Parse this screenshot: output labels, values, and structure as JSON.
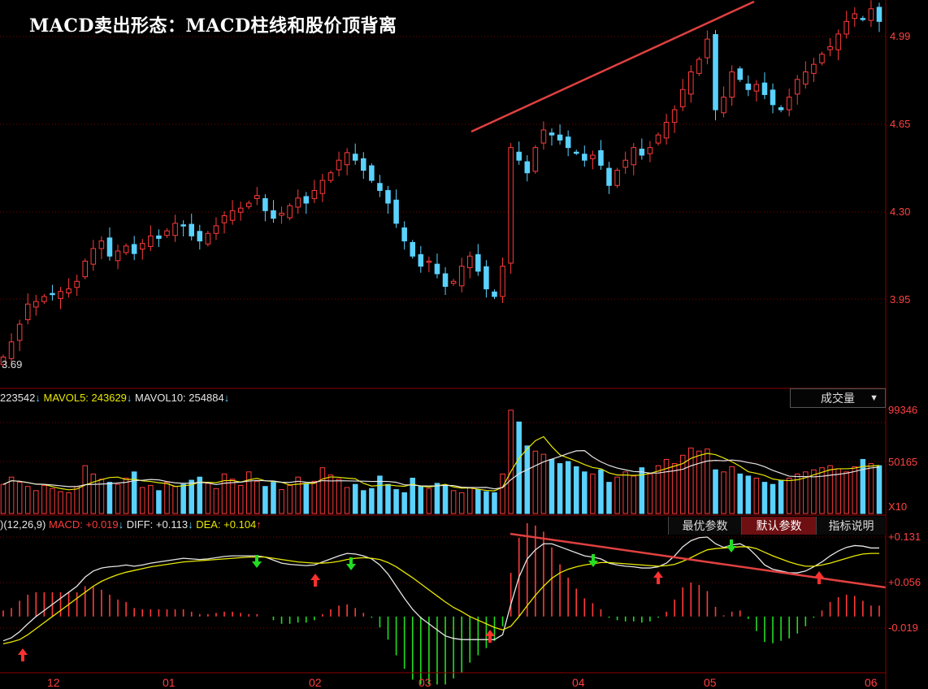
{
  "title": "MACD卖出形态：MACD柱线和股价顶背离",
  "price_labels": [
    "4.99",
    "4.65",
    "4.30",
    "3.95"
  ],
  "first_price": "3.69",
  "volume_panel": {
    "legend": {
      "vol": "223542",
      "mavol5_label": "MAVOL5:",
      "mavol5": "243629",
      "mavol10_label": "MAVOL10:",
      "mavol10": "254884"
    },
    "button": "成交量",
    "axis": [
      "99346",
      "50165",
      "X10"
    ]
  },
  "macd_panel": {
    "legend": {
      "params": ")(12,26,9)",
      "macd_label": "MACD:",
      "macd": "+0.019",
      "diff_label": "DIFF:",
      "diff": "+0.113",
      "dea_label": "DEA:",
      "dea": "+0.104"
    },
    "buttons": [
      "最优参数",
      "默认参数",
      "指标说明"
    ],
    "axis": [
      "+0.131",
      "+0.056",
      "-0.019"
    ]
  },
  "x_labels": [
    "12",
    "01",
    "02",
    "03",
    "04",
    "05",
    "06"
  ],
  "colors": {
    "up": "#ff3b3b",
    "down": "#5ad2ff",
    "grid": "#7a0000",
    "trend": "#e04040",
    "ma_white": "#e6e6e6",
    "ma_yellow": "#e8e800",
    "buy": "#ff3030",
    "sell": "#22dd22"
  },
  "chart_data": {
    "type": "candlestick",
    "price_ylim": [
      3.62,
      5.1
    ],
    "close": [
      3.72,
      3.78,
      3.85,
      3.93,
      3.94,
      3.96,
      3.97,
      3.98,
      3.99,
      4.02,
      4.1,
      4.15,
      4.18,
      4.12,
      4.14,
      4.16,
      4.13,
      4.17,
      4.2,
      4.19,
      4.22,
      4.25,
      4.24,
      4.2,
      4.18,
      4.21,
      4.24,
      4.28,
      4.3,
      4.31,
      4.33,
      4.36,
      4.3,
      4.27,
      4.29,
      4.32,
      4.35,
      4.33,
      4.38,
      4.42,
      4.45,
      4.5,
      4.53,
      4.5,
      4.46,
      4.42,
      4.38,
      4.33,
      4.25,
      4.18,
      4.12,
      4.08,
      4.1,
      4.05,
      4.0,
      4.02,
      4.08,
      4.12,
      4.06,
      3.99,
      3.96,
      4.08,
      4.55,
      4.5,
      4.45,
      4.55,
      4.62,
      4.6,
      4.58,
      4.55,
      4.53,
      4.5,
      4.52,
      4.48,
      4.4,
      4.46,
      4.5,
      4.55,
      4.52,
      4.55,
      4.6,
      4.65,
      4.7,
      4.78,
      4.85,
      4.9,
      4.98,
      4.7,
      4.75,
      4.85,
      4.82,
      4.78,
      4.8,
      4.76,
      4.72,
      4.7,
      4.75,
      4.82,
      4.85,
      4.88,
      4.92,
      4.95,
      5.0,
      5.05,
      5.08,
      5.06,
      5.1,
      5.05
    ],
    "volume_ylim": [
      0,
      100000
    ],
    "volume": [
      28000,
      35000,
      30000,
      26000,
      22000,
      27000,
      24000,
      21000,
      20000,
      26000,
      46000,
      38000,
      33000,
      30000,
      28000,
      34000,
      40000,
      25000,
      27000,
      22000,
      30000,
      26000,
      28000,
      32000,
      35000,
      29000,
      24000,
      38000,
      33000,
      27000,
      40000,
      31000,
      26000,
      30000,
      23000,
      27000,
      35000,
      29000,
      31000,
      44000,
      37000,
      33000,
      25000,
      28000,
      22000,
      24000,
      36000,
      28000,
      23000,
      20000,
      34000,
      26000,
      24000,
      29000,
      27000,
      22000,
      20000,
      25000,
      23000,
      21000,
      20000,
      38000,
      99346,
      88000,
      65000,
      60000,
      57000,
      52000,
      48000,
      50000,
      45000,
      40000,
      38000,
      42000,
      30000,
      35000,
      40000,
      36000,
      44000,
      38000,
      46000,
      52000,
      48000,
      56000,
      63000,
      60000,
      62000,
      42000,
      40000,
      45000,
      38000,
      36000,
      34000,
      30000,
      28000,
      32000,
      34000,
      38000,
      40000,
      42000,
      44000,
      46000,
      43000,
      40000,
      45000,
      52000,
      48000,
      46000
    ],
    "macd_ylim": [
      -0.06,
      0.14
    ],
    "diff": [
      -0.04,
      -0.035,
      -0.025,
      -0.012,
      0.0,
      0.01,
      0.02,
      0.03,
      0.04,
      0.05,
      0.065,
      0.075,
      0.08,
      0.082,
      0.083,
      0.085,
      0.083,
      0.085,
      0.088,
      0.09,
      0.092,
      0.094,
      0.096,
      0.095,
      0.094,
      0.095,
      0.097,
      0.099,
      0.1,
      0.1,
      0.1,
      0.1,
      0.098,
      0.093,
      0.088,
      0.086,
      0.085,
      0.084,
      0.085,
      0.09,
      0.095,
      0.1,
      0.104,
      0.103,
      0.1,
      0.095,
      0.085,
      0.07,
      0.05,
      0.03,
      0.012,
      -0.002,
      -0.012,
      -0.022,
      -0.032,
      -0.036,
      -0.038,
      -0.038,
      -0.038,
      -0.038,
      -0.038,
      -0.03,
      0.02,
      0.065,
      0.095,
      0.11,
      0.12,
      0.12,
      0.115,
      0.11,
      0.105,
      0.1,
      0.098,
      0.095,
      0.088,
      0.085,
      0.083,
      0.082,
      0.08,
      0.08,
      0.082,
      0.088,
      0.1,
      0.115,
      0.125,
      0.13,
      0.131,
      0.12,
      0.114,
      0.118,
      0.12,
      0.113,
      0.1,
      0.085,
      0.078,
      0.075,
      0.072,
      0.072,
      0.075,
      0.082,
      0.09,
      0.1,
      0.108,
      0.114,
      0.117,
      0.116,
      0.113,
      0.113
    ],
    "dea": [
      -0.045,
      -0.042,
      -0.038,
      -0.03,
      -0.02,
      -0.01,
      0.0,
      0.01,
      0.02,
      0.03,
      0.04,
      0.05,
      0.058,
      0.064,
      0.069,
      0.073,
      0.076,
      0.079,
      0.082,
      0.084,
      0.086,
      0.088,
      0.09,
      0.091,
      0.092,
      0.093,
      0.094,
      0.095,
      0.096,
      0.097,
      0.098,
      0.098,
      0.098,
      0.096,
      0.094,
      0.092,
      0.09,
      0.089,
      0.088,
      0.088,
      0.089,
      0.091,
      0.094,
      0.096,
      0.097,
      0.096,
      0.094,
      0.089,
      0.082,
      0.073,
      0.064,
      0.054,
      0.044,
      0.034,
      0.024,
      0.015,
      0.008,
      0.0,
      -0.006,
      -0.012,
      -0.018,
      -0.022,
      -0.016,
      0.0,
      0.018,
      0.035,
      0.05,
      0.063,
      0.072,
      0.078,
      0.082,
      0.085,
      0.087,
      0.089,
      0.089,
      0.088,
      0.087,
      0.086,
      0.085,
      0.084,
      0.083,
      0.084,
      0.086,
      0.091,
      0.097,
      0.104,
      0.11,
      0.112,
      0.113,
      0.114,
      0.115,
      0.115,
      0.112,
      0.106,
      0.1,
      0.095,
      0.09,
      0.086,
      0.083,
      0.083,
      0.085,
      0.088,
      0.092,
      0.096,
      0.1,
      0.103,
      0.104,
      0.104
    ]
  }
}
